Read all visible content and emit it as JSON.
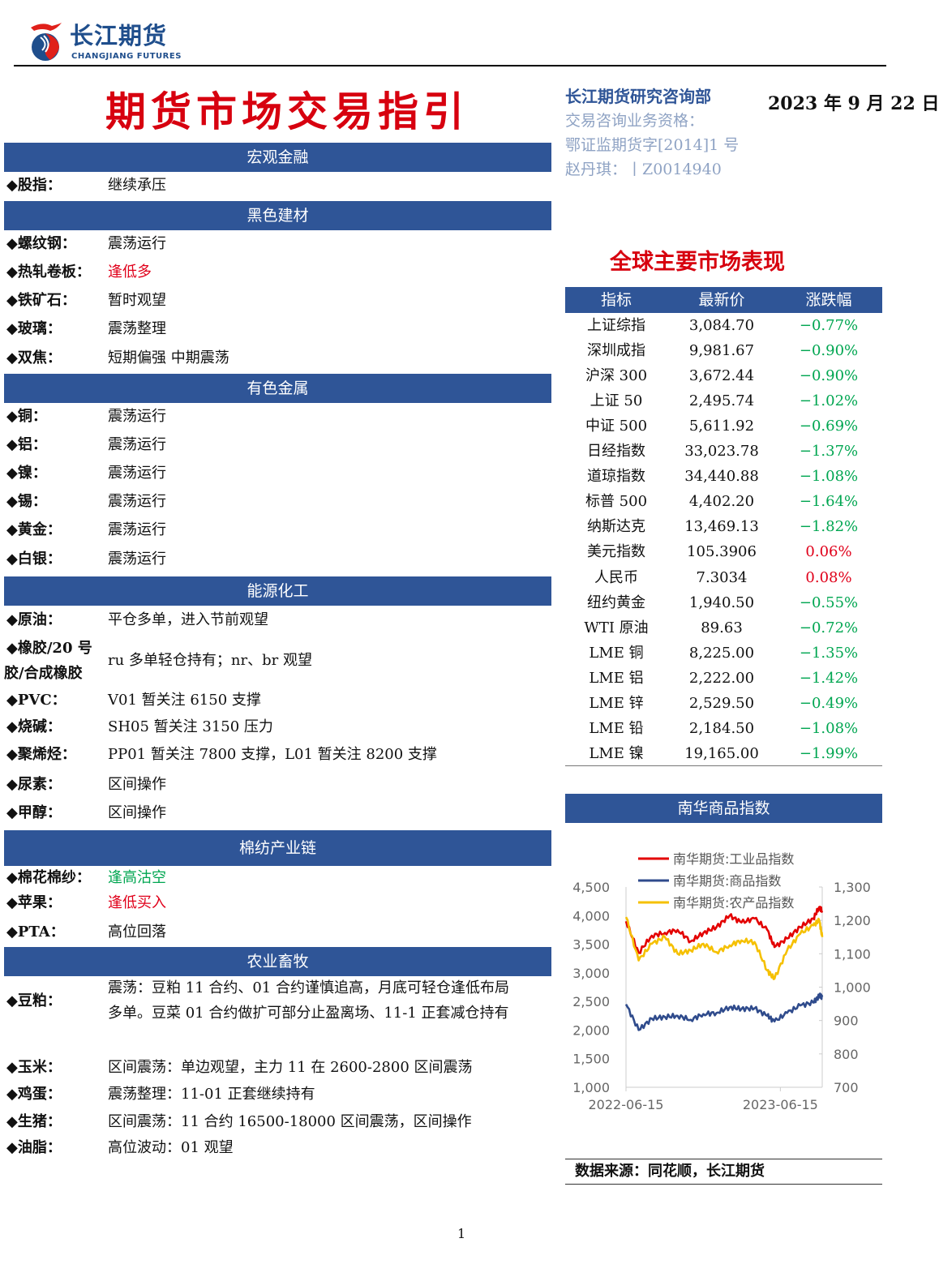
{
  "header": {
    "logo_cn": "长江期货",
    "logo_en": "CHANGJIANG FUTURES",
    "title": "期货市场交易指引",
    "dept": "长江期货研究咨询部",
    "qual_label": "交易咨询业务资格：",
    "qual_no": "鄂证监期货字[2014]1 号",
    "analyst": "赵丹琪：丨Z0014940",
    "date": "2023 年 9 月 22 日"
  },
  "sections": [
    {
      "title": "宏观金融",
      "rows": [
        {
          "label": "◆股指：",
          "value": "继续承压"
        }
      ]
    },
    {
      "title": "黑色建材",
      "rows": [
        {
          "label": "◆螺纹钢：",
          "value": "震荡运行"
        },
        {
          "label": "◆热轧卷板：",
          "value": "逢低多",
          "color": "red"
        },
        {
          "label": "◆铁矿石：",
          "value": "暂时观望"
        },
        {
          "label": "◆玻璃：",
          "value": "震荡整理"
        },
        {
          "label": "◆双焦：",
          "value": "短期偏强  中期震荡"
        }
      ]
    },
    {
      "title": "有色金属",
      "rows": [
        {
          "label": "◆铜：",
          "value": "震荡运行"
        },
        {
          "label": "◆铝：",
          "value": "震荡运行"
        },
        {
          "label": "◆镍：",
          "value": "震荡运行"
        },
        {
          "label": "◆锡：",
          "value": "震荡运行"
        },
        {
          "label": "◆黄金：",
          "value": "震荡运行"
        },
        {
          "label": "◆白银：",
          "value": "震荡运行"
        }
      ]
    },
    {
      "title": "能源化工",
      "rows": [
        {
          "label": "◆原油：",
          "value": "平仓多单，进入节前观望"
        },
        {
          "label": "◆橡胶/20 号",
          "label2": "胶/合成橡胶",
          "value": "ru 多单轻仓持有；nr、br 观望"
        },
        {
          "label": "◆PVC：",
          "value": "V01 暂关注 6150 支撑"
        },
        {
          "label": "◆烧碱：",
          "value": "SH05 暂关注 3150 压力"
        },
        {
          "label": "◆聚烯烃：",
          "value": "PP01 暂关注 7800 支撑，L01 暂关注 8200 支撑"
        },
        {
          "label": "◆尿素：",
          "value": "区间操作"
        },
        {
          "label": "◆甲醇：",
          "value": "区间操作"
        }
      ]
    },
    {
      "title": "棉纺产业链",
      "rows": [
        {
          "label": "◆棉花棉纱：",
          "value": "逢高沽空",
          "color": "green"
        },
        {
          "label": "◆苹果：",
          "value": "逢低买入",
          "color": "red"
        },
        {
          "label": "◆PTA：",
          "value": "高位回落"
        }
      ]
    },
    {
      "title": "农业畜牧",
      "rows": [
        {
          "label": "◆豆粕：",
          "value": "震荡：豆粕 11 合约、01 合约谨慎追高，月底可轻仓逢低布局",
          "value2": "多单。豆菜 01 合约做扩可部分止盈离场、11-1 正套减仓持有"
        },
        {
          "label": "◆玉米：",
          "value": "区间震荡：单边观望，主力 11 在 2600-2800 区间震荡"
        },
        {
          "label": "◆鸡蛋：",
          "value": "震荡整理：11-01 正套继续持有"
        },
        {
          "label": "◆生猪：",
          "value": "区间震荡：11 合约 16500-18000 区间震荡，区间操作"
        },
        {
          "label": "◆油脂：",
          "value": "高位波动：01 观望"
        }
      ]
    }
  ],
  "market": {
    "title": "全球主要市场表现",
    "headers": [
      "指标",
      "最新价",
      "涨跌幅"
    ],
    "rows": [
      [
        "上证综指",
        "3,084.70",
        "−0.77%"
      ],
      [
        "深圳成指",
        "9,981.67",
        "−0.90%"
      ],
      [
        "沪深 300",
        "3,672.44",
        "−0.90%"
      ],
      [
        "上证 50",
        "2,495.74",
        "−1.02%"
      ],
      [
        "中证 500",
        "5,611.92",
        "−0.69%"
      ],
      [
        "日经指数",
        "33,023.78",
        "−1.37%"
      ],
      [
        "道琼指数",
        "34,440.88",
        "−1.08%"
      ],
      [
        "标普 500",
        "4,402.20",
        "−1.64%"
      ],
      [
        "纳斯达克",
        "13,469.13",
        "−1.82%"
      ],
      [
        "美元指数",
        "105.3906",
        "0.06%"
      ],
      [
        "人民币",
        "7.3034",
        "0.08%"
      ],
      [
        "纽约黄金",
        "1,940.50",
        "−0.55%"
      ],
      [
        "WTI 原油",
        "89.63",
        "−0.72%"
      ],
      [
        "LME 铜",
        "8,225.00",
        "−1.35%"
      ],
      [
        "LME 铝",
        "2,222.00",
        "−1.42%"
      ],
      [
        "LME 锌",
        "2,529.50",
        "−0.49%"
      ],
      [
        "LME 铅",
        "2,184.50",
        "−1.08%"
      ],
      [
        "LME 镍",
        "19,165.00",
        "−1.99%"
      ]
    ]
  },
  "chart_title": "南华商品指数",
  "source": "数据来源：同花顺，长江期货",
  "page_number": "1",
  "colors": {
    "accent": "#2f5597",
    "red": "#e30000",
    "blue": "#2f4b8c",
    "yellow": "#f5c000"
  },
  "chart_data": {
    "type": "line",
    "title": "南华商品指数",
    "x": [
      "2022-06-15",
      "2022-07-15",
      "2022-08-15",
      "2022-09-15",
      "2022-10-15",
      "2022-11-15",
      "2022-12-15",
      "2023-01-15",
      "2023-02-15",
      "2023-03-15",
      "2023-04-15",
      "2023-05-15",
      "2023-06-01",
      "2023-07-01",
      "2023-08-01",
      "2023-09-01",
      "2023-09-15",
      "2023-09-22"
    ],
    "x_ticks": [
      "2022-06-15",
      "2023-06-15"
    ],
    "y_left": {
      "ticks": [
        "1,000",
        "1,500",
        "2,000",
        "2,500",
        "3,000",
        "3,500",
        "4,000",
        "4,500"
      ],
      "range": [
        1000,
        4500
      ]
    },
    "y_right": {
      "ticks": [
        "700",
        "800",
        "900",
        "1,000",
        "1,100",
        "1,200",
        "1,300"
      ],
      "range": [
        700,
        1300
      ]
    },
    "series": [
      {
        "name": "南华期货:工业品指数",
        "axis": "left",
        "color": "#e30000",
        "values": [
          3900,
          3350,
          3650,
          3700,
          3750,
          3550,
          3700,
          3800,
          4000,
          3880,
          3950,
          3750,
          3450,
          3600,
          3800,
          3950,
          4150,
          4080
        ]
      },
      {
        "name": "南华期货:商品指数",
        "axis": "left",
        "color": "#2f4b8c",
        "values": [
          2450,
          2000,
          2200,
          2230,
          2250,
          2180,
          2280,
          2300,
          2400,
          2370,
          2380,
          2250,
          2150,
          2300,
          2430,
          2480,
          2600,
          2580
        ]
      },
      {
        "name": "南华期货:农产品指数",
        "axis": "right",
        "color": "#f5c000",
        "values": [
          1210,
          1080,
          1130,
          1150,
          1100,
          1110,
          1130,
          1105,
          1125,
          1140,
          1135,
          1050,
          1025,
          1110,
          1160,
          1185,
          1200,
          1150
        ]
      }
    ]
  }
}
